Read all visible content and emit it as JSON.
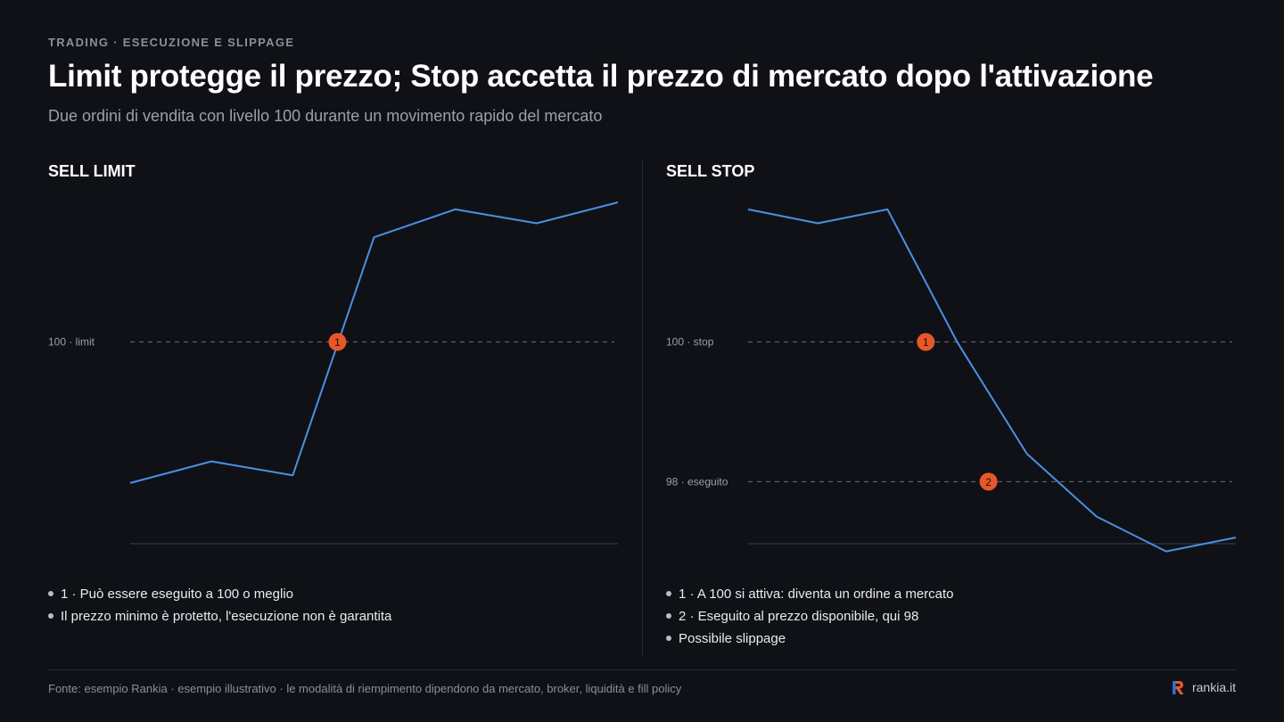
{
  "header": {
    "eyebrow": "TRADING · ESECUZIONE E SLIPPAGE",
    "title": "Limit protegge il prezzo; Stop accetta il prezzo di mercato dopo l'attivazione",
    "subtitle": "Due ordini di vendita con livello 100 durante un movimento rapido del mercato"
  },
  "colors": {
    "line": "#4a90e2",
    "marker": "#e8572a",
    "dashed": "#6b707a",
    "axis": "#3a3f49",
    "level_label": "#9aa0aa"
  },
  "chart_data": [
    {
      "type": "line",
      "panel_title": "SELL LIMIT",
      "series": [
        {
          "values": [
            97.98,
            98.29,
            98.09,
            101.5,
            101.9,
            101.7,
            102.0
          ]
        }
      ],
      "ylim": [
        96.6,
        102.6
      ],
      "reference_lines": [
        {
          "value": 100,
          "label": "100 · limit"
        }
      ],
      "markers": [
        {
          "label": "1",
          "x": 2.55,
          "y": 100
        }
      ],
      "notes": [
        "1 · Può essere eseguito a 100 o meglio",
        "Il prezzo minimo è protetto, l'esecuzione non è garantita"
      ]
    },
    {
      "type": "line",
      "panel_title": "SELL STOP",
      "series": [
        {
          "values": [
            101.9,
            101.7,
            101.9,
            100.0,
            98.4,
            97.5,
            97.0,
            97.2
          ]
        }
      ],
      "ylim": [
        96.6,
        102.6
      ],
      "reference_lines": [
        {
          "value": 100,
          "label": "100 · stop"
        },
        {
          "value": 98,
          "label": "98 · eseguito"
        }
      ],
      "markers": [
        {
          "label": "1",
          "x": 2.55,
          "y": 100
        },
        {
          "label": "2",
          "x": 3.45,
          "y": 98
        }
      ],
      "notes": [
        "1 · A 100 si attiva: diventa un ordine a mercato",
        "2 · Eseguito al prezzo disponibile, qui 98",
        "Possibile slippage"
      ]
    }
  ],
  "footer": {
    "source": "Fonte: esempio Rankia · esempio illustrativo · le modalità di riempimento dipendono da mercato, broker, liquidità e fill policy",
    "brand": "rankia.it"
  }
}
